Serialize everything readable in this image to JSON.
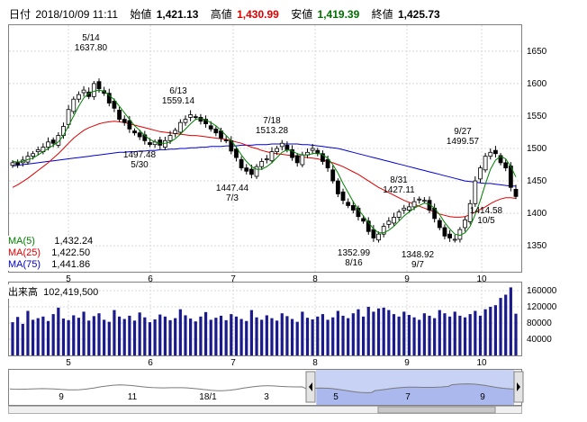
{
  "header": {
    "date_label": "日付",
    "date_value": "2018/10/09 11:11",
    "open_label": "始値",
    "open_value": "1,421.13",
    "high_label": "高値",
    "high_value": "1,430.99",
    "low_label": "安値",
    "low_value": "1,419.39",
    "close_label": "終値",
    "close_value": "1,425.73"
  },
  "legend": {
    "ma5_label": "MA(5)",
    "ma5_value": "1,432.24",
    "ma5_color": "#008000",
    "ma25_label": "MA(25)",
    "ma25_value": "1,422.50",
    "ma25_color": "#e00000",
    "ma75_label": "MA(75)",
    "ma75_value": "1,441.86",
    "ma75_color": "#0000d0"
  },
  "volume_header": {
    "label": "出来高",
    "value": "102,419,500"
  },
  "colors": {
    "candle_up": "#ffffff",
    "candle_down": "#000000",
    "volume_bar": "#1a1a8c",
    "navigator_fill": "#aab8ee"
  },
  "chart_data": [
    {
      "type": "candlestick",
      "y_ticks": [
        1350,
        1400,
        1450,
        1500,
        1550,
        1600,
        1650
      ],
      "ylim": [
        1310,
        1690
      ],
      "x_month_labels": [
        "5",
        "6",
        "7",
        "8",
        "9",
        "10"
      ],
      "annotations": [
        {
          "date": "5/14",
          "price": "1637.80",
          "kind": "high"
        },
        {
          "date": "5/30",
          "price": "1497.48",
          "kind": "low"
        },
        {
          "date": "6/13",
          "price": "1559.14",
          "kind": "high"
        },
        {
          "date": "7/3",
          "price": "1447.44",
          "kind": "low"
        },
        {
          "date": "7/18",
          "price": "1513.28",
          "kind": "high"
        },
        {
          "date": "8/16",
          "price": "1352.99",
          "kind": "low"
        },
        {
          "date": "8/31",
          "price": "1427.11",
          "kind": "high"
        },
        {
          "date": "9/7",
          "price": "1348.92",
          "kind": "low"
        },
        {
          "date": "9/27",
          "price": "1499.57",
          "kind": "high"
        },
        {
          "date": "10/5",
          "price": "1414.58",
          "kind": "low"
        }
      ],
      "closes": [
        1478,
        1475,
        1482,
        1488,
        1492,
        1498,
        1502,
        1510,
        1508,
        1520,
        1534,
        1560,
        1576,
        1583,
        1590,
        1580,
        1600,
        1592,
        1585,
        1570,
        1562,
        1545,
        1540,
        1530,
        1524,
        1518,
        1512,
        1506,
        1510,
        1505,
        1512,
        1520,
        1528,
        1540,
        1545,
        1552,
        1548,
        1542,
        1538,
        1530,
        1524,
        1516,
        1512,
        1496,
        1486,
        1470,
        1465,
        1460,
        1472,
        1480,
        1484,
        1495,
        1500,
        1508,
        1498,
        1486,
        1478,
        1490,
        1494,
        1500,
        1492,
        1480,
        1470,
        1450,
        1430,
        1420,
        1412,
        1405,
        1395,
        1388,
        1372,
        1362,
        1368,
        1380,
        1388,
        1394,
        1402,
        1408,
        1410,
        1418,
        1422,
        1420,
        1405,
        1392,
        1378,
        1365,
        1362,
        1360,
        1375,
        1390,
        1415,
        1450,
        1470,
        1488,
        1494,
        1492,
        1478,
        1470,
        1440,
        1426
      ],
      "ma5": [
        1480,
        1479,
        1480,
        1483,
        1485,
        1490,
        1495,
        1500,
        1505,
        1510,
        1520,
        1535,
        1550,
        1565,
        1578,
        1585,
        1588,
        1590,
        1588,
        1582,
        1575,
        1565,
        1555,
        1545,
        1535,
        1528,
        1520,
        1514,
        1510,
        1508,
        1508,
        1510,
        1515,
        1522,
        1530,
        1538,
        1545,
        1546,
        1544,
        1540,
        1535,
        1528,
        1520,
        1512,
        1502,
        1490,
        1480,
        1472,
        1468,
        1468,
        1472,
        1478,
        1486,
        1494,
        1498,
        1496,
        1492,
        1490,
        1490,
        1492,
        1493,
        1490,
        1485,
        1475,
        1462,
        1446,
        1432,
        1418,
        1406,
        1396,
        1386,
        1376,
        1370,
        1370,
        1374,
        1380,
        1388,
        1396,
        1402,
        1408,
        1412,
        1416,
        1414,
        1408,
        1398,
        1386,
        1376,
        1368,
        1366,
        1370,
        1380,
        1398,
        1420,
        1445,
        1468,
        1482,
        1488,
        1484,
        1472,
        1456
      ],
      "ma25": [
        1440,
        1444,
        1449,
        1454,
        1460,
        1466,
        1472,
        1478,
        1485,
        1492,
        1500,
        1508,
        1516,
        1522,
        1528,
        1532,
        1535,
        1538,
        1540,
        1541,
        1542,
        1541,
        1540,
        1538,
        1536,
        1534,
        1532,
        1530,
        1528,
        1526,
        1525,
        1524,
        1523,
        1522,
        1521,
        1520,
        1520,
        1519,
        1518,
        1517,
        1516,
        1515,
        1514,
        1512,
        1510,
        1508,
        1505,
        1502,
        1500,
        1497,
        1495,
        1493,
        1492,
        1491,
        1490,
        1489,
        1488,
        1487,
        1486,
        1485,
        1484,
        1482,
        1480,
        1478,
        1475,
        1472,
        1468,
        1464,
        1460,
        1455,
        1450,
        1445,
        1440,
        1436,
        1432,
        1428,
        1424,
        1420,
        1417,
        1414,
        1411,
        1408,
        1405,
        1402,
        1399,
        1397,
        1395,
        1394,
        1394,
        1395,
        1398,
        1402,
        1406,
        1410,
        1415,
        1419,
        1422,
        1424,
        1424,
        1423
      ],
      "ma75": [
        1473,
        1474,
        1475,
        1476,
        1477,
        1478,
        1479,
        1480,
        1481,
        1482,
        1483,
        1484,
        1485,
        1486,
        1487,
        1488,
        1489,
        1490,
        1491,
        1492,
        1493,
        1494,
        1494,
        1495,
        1495,
        1496,
        1496,
        1497,
        1497,
        1498,
        1498,
        1499,
        1499,
        1500,
        1500,
        1501,
        1501,
        1502,
        1502,
        1503,
        1503,
        1503,
        1504,
        1504,
        1504,
        1505,
        1505,
        1505,
        1506,
        1506,
        1506,
        1507,
        1507,
        1507,
        1507,
        1507,
        1507,
        1506,
        1506,
        1505,
        1504,
        1503,
        1502,
        1501,
        1500,
        1498,
        1496,
        1494,
        1492,
        1490,
        1488,
        1486,
        1484,
        1482,
        1480,
        1478,
        1476,
        1474,
        1472,
        1470,
        1468,
        1466,
        1464,
        1462,
        1460,
        1458,
        1456,
        1454,
        1452,
        1450,
        1449,
        1448,
        1447,
        1446,
        1446,
        1445,
        1444,
        1443,
        1442,
        1442
      ]
    },
    {
      "type": "bar",
      "name": "volume",
      "y_ticks": [
        40000,
        80000,
        120000,
        160000
      ],
      "ylim": [
        0,
        180000
      ],
      "x_month_labels": [
        "5",
        "6",
        "7",
        "8",
        "9",
        "10"
      ],
      "values": [
        82000,
        95000,
        78000,
        110000,
        88000,
        92000,
        96000,
        85000,
        102000,
        118000,
        91000,
        87000,
        99000,
        93000,
        108000,
        86000,
        97000,
        104000,
        88000,
        83000,
        112000,
        96000,
        90000,
        98000,
        86000,
        106000,
        94000,
        82000,
        89000,
        101000,
        96000,
        87000,
        92000,
        114000,
        99000,
        91000,
        84000,
        96000,
        107000,
        88000,
        93000,
        98000,
        87000,
        102000,
        96000,
        90000,
        85000,
        112000,
        94000,
        88000,
        99000,
        92000,
        86000,
        104000,
        97000,
        90000,
        83000,
        108000,
        93000,
        89000,
        96000,
        102000,
        88000,
        94000,
        110000,
        98000,
        92000,
        104000,
        114000,
        96000,
        120000,
        108000,
        116000,
        118000,
        112000,
        102000,
        96000,
        108000,
        100000,
        94000,
        88000,
        104000,
        98000,
        92000,
        112000,
        104000,
        96000,
        108000,
        98000,
        94000,
        102000,
        110000,
        98000,
        114000,
        120000,
        124000,
        142000,
        150000,
        168000,
        103000
      ]
    },
    {
      "type": "area",
      "name": "navigator",
      "x_labels": [
        "9",
        "11",
        "18/1",
        "3",
        "5",
        "7",
        "9"
      ]
    }
  ]
}
